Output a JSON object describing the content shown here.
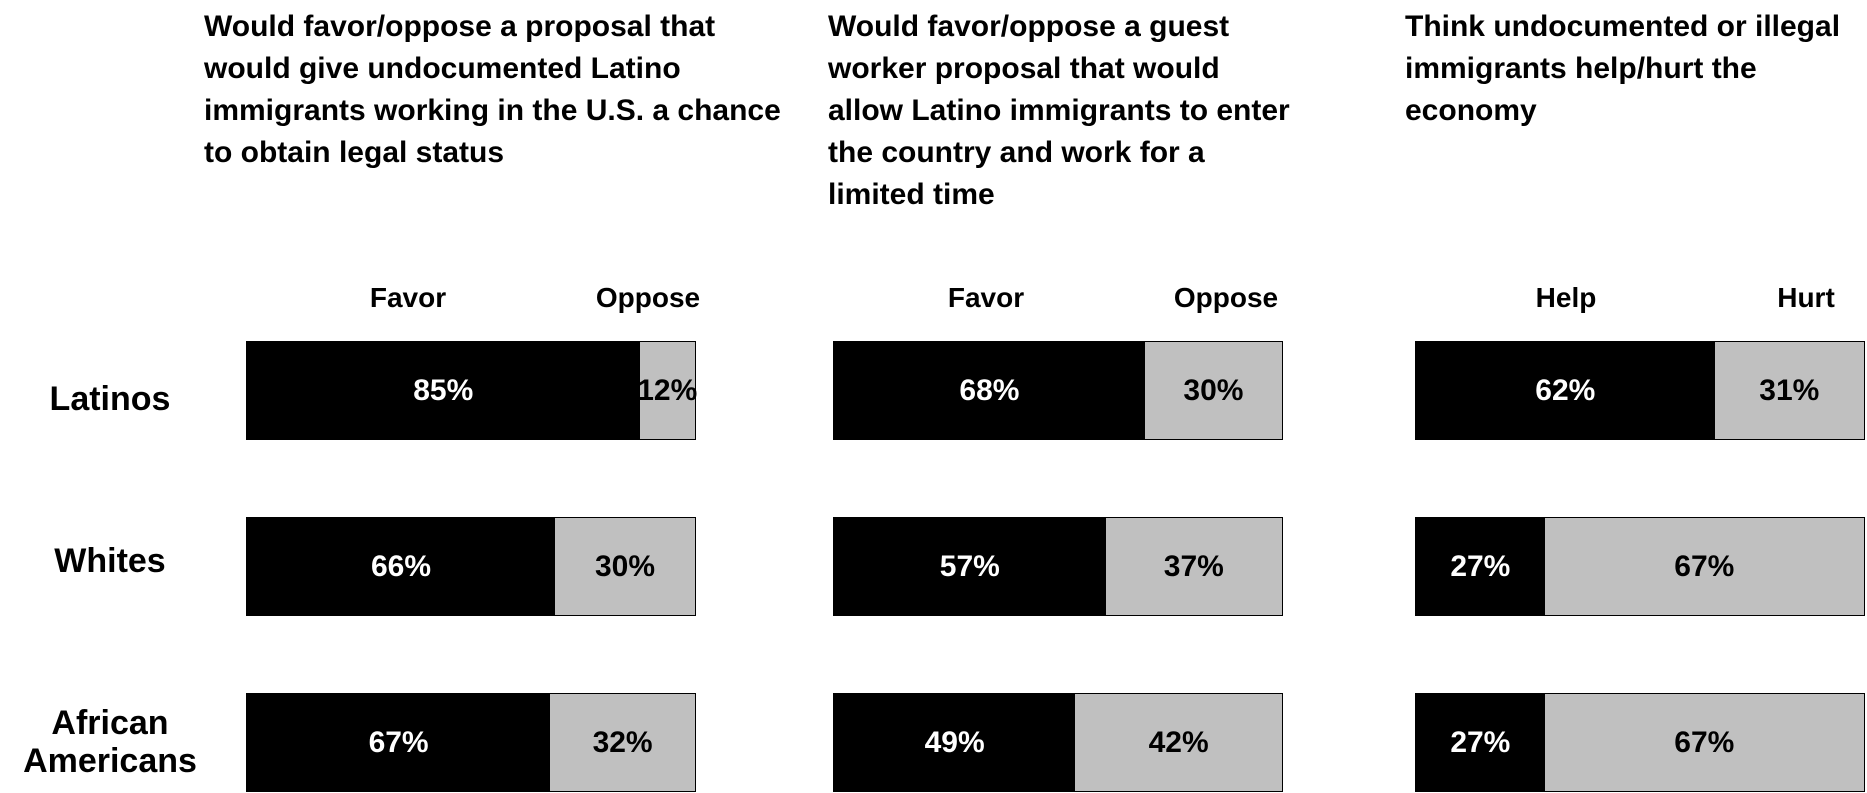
{
  "colors": {
    "positive": "#000000",
    "negative": "#c0c0c0"
  },
  "chart_data": [
    {
      "type": "bar",
      "title": "Would favor/oppose a proposal that would give undocumented Latino immigrants working in the U.S. a chance to obtain legal status",
      "categories": [
        "Latinos",
        "Whites",
        "African Americans"
      ],
      "series": [
        {
          "name": "Favor",
          "values": [
            85,
            66,
            67
          ],
          "labels": [
            "85%",
            "66%",
            "67%"
          ]
        },
        {
          "name": "Oppose",
          "values": [
            12,
            30,
            32
          ],
          "labels": [
            "12%",
            "30%",
            "32%"
          ]
        }
      ],
      "xlim": [
        0,
        100
      ]
    },
    {
      "type": "bar",
      "title": "Would favor/oppose a guest worker proposal that would allow Latino immigrants to enter the country and work for a limited time",
      "categories": [
        "Latinos",
        "Whites",
        "African Americans"
      ],
      "series": [
        {
          "name": "Favor",
          "values": [
            68,
            57,
            49
          ],
          "labels": [
            "68%",
            "57%",
            "49%"
          ]
        },
        {
          "name": "Oppose",
          "values": [
            30,
            37,
            42
          ],
          "labels": [
            "30%",
            "37%",
            "42%"
          ]
        }
      ],
      "xlim": [
        0,
        100
      ]
    },
    {
      "type": "bar",
      "title": "Think undocumented or illegal immigrants help/hurt the economy",
      "categories": [
        "Latinos",
        "Whites",
        "African Americans"
      ],
      "series": [
        {
          "name": "Help",
          "values": [
            62,
            27,
            27
          ],
          "labels": [
            "62%",
            "27%",
            "27%"
          ]
        },
        {
          "name": "Hurt",
          "values": [
            31,
            67,
            67
          ],
          "labels": [
            "31%",
            "67%",
            "67%"
          ]
        }
      ],
      "xlim": [
        0,
        100
      ]
    }
  ],
  "row_labels": [
    "Latinos",
    "Whites",
    "African\nAmericans"
  ]
}
